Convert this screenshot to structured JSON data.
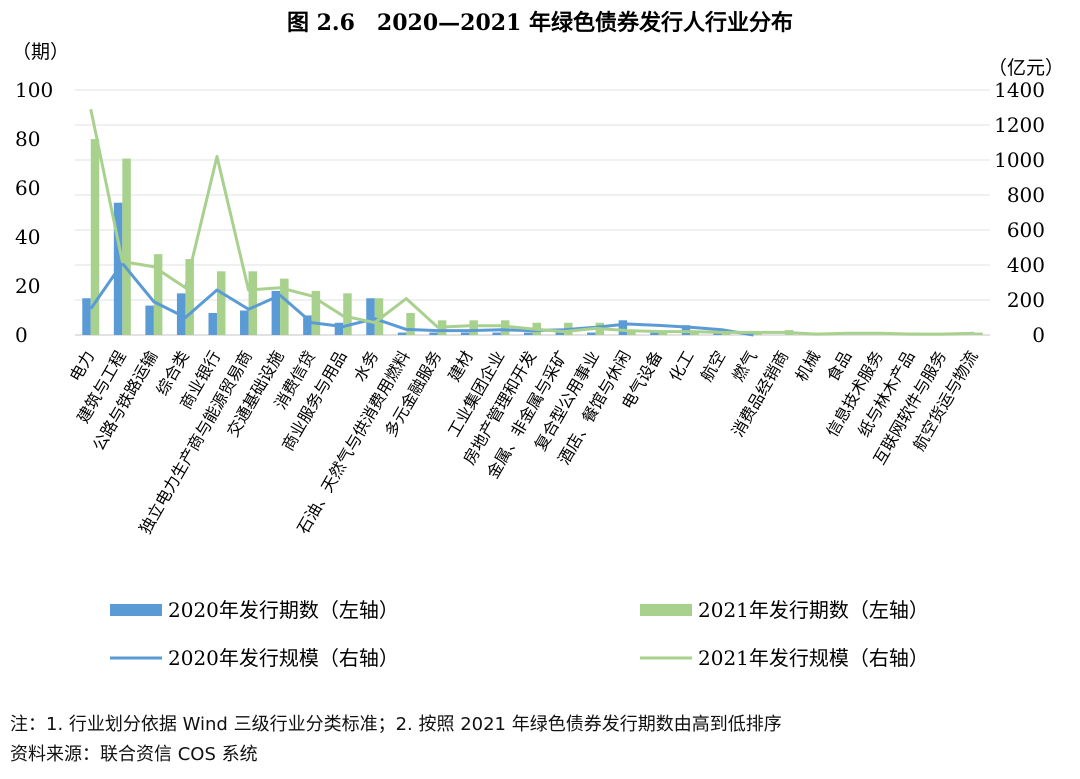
{
  "chart_data": {
    "type": "bar",
    "title": "图 2.6　2020—2021 年绿色债券发行人行业分布",
    "ylabel_left": "（期）",
    "ylabel_right": "（亿元）",
    "ylim_left": [
      0,
      100
    ],
    "yticks_left": [
      0,
      20,
      40,
      60,
      80,
      100
    ],
    "ylim_right": [
      0,
      1400
    ],
    "yticks_right": [
      0,
      200,
      400,
      600,
      800,
      1000,
      1200,
      1400
    ],
    "grid": true,
    "legend_position": "bottom",
    "categories": [
      "电力",
      "建筑与工程",
      "公路与铁路运输",
      "综合类",
      "商业银行",
      "独立电力生产商与能源贸易商",
      "交通基础设施",
      "消费信贷",
      "商业服务与用品",
      "水务",
      "石油、天然气与供消费用燃料",
      "多元金融服务",
      "建材",
      "工业集团企业",
      "房地产管理和开发",
      "金属、非金属与采矿",
      "复合型公用事业",
      "酒店、餐馆与休闲",
      "电气设备",
      "化工",
      "航空",
      "燃气",
      "消费品经销商",
      "机械",
      "食品",
      "信息技术服务",
      "纸与林木产品",
      "互联网软件与服务",
      "航空货运与物流"
    ],
    "series": [
      {
        "name": "2020年发行期数（左轴）",
        "type": "bar",
        "axis": "left",
        "color": "#5b9bd5",
        "values": [
          15,
          54,
          12,
          17,
          9,
          10,
          18,
          8,
          5,
          15,
          1,
          1,
          1,
          1,
          1,
          1,
          1,
          6,
          1,
          4,
          1,
          1,
          0,
          0,
          0,
          0,
          0,
          0,
          0
        ]
      },
      {
        "name": "2021年发行期数（左轴）",
        "type": "bar",
        "axis": "left",
        "color": "#a9d18e",
        "values": [
          80,
          72,
          33,
          31,
          26,
          26,
          23,
          18,
          17,
          15,
          9,
          6,
          6,
          6,
          5,
          5,
          5,
          2,
          1,
          1,
          1,
          1,
          2,
          1,
          0,
          0,
          1,
          1,
          1
        ]
      },
      {
        "name": "2020年发行规模（右轴）",
        "type": "line",
        "axis": "right",
        "color": "#5b9bd5",
        "values": [
          150,
          410,
          190,
          100,
          257,
          147,
          227,
          71,
          48,
          93,
          32,
          25,
          25,
          30,
          25,
          30,
          44,
          63,
          55,
          44,
          30,
          0,
          null,
          null,
          null,
          null,
          null,
          null,
          null
        ]
      },
      {
        "name": "2021年发行规模（右轴）",
        "type": "line",
        "axis": "right",
        "color": "#a9d18e",
        "values": [
          1290,
          420,
          390,
          270,
          1020,
          257,
          270,
          223,
          109,
          71,
          208,
          44,
          53,
          53,
          34,
          19,
          38,
          25,
          20,
          19,
          15,
          15,
          15,
          5,
          10,
          10,
          5,
          5,
          10
        ]
      }
    ]
  },
  "notes": {
    "note": "注：1. 行业划分依据 Wind 三级行业分类标准；2. 按照 2021 年绿色债券发行期数由高到低排序",
    "source": "资料来源：联合资信 COS 系统"
  }
}
